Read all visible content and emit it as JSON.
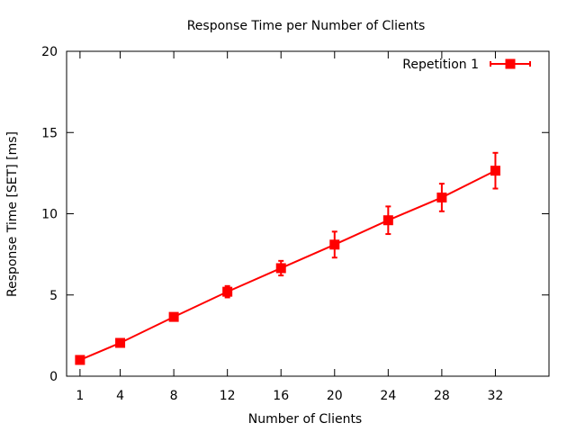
{
  "chart_data": {
    "type": "line",
    "title": "Response Time per Number of Clients",
    "xlabel": "Number of Clients",
    "ylabel": "Response Time [SET] [ms]",
    "xlim": [
      0,
      36
    ],
    "ylim": [
      0,
      20
    ],
    "xticks": [
      1,
      4,
      8,
      12,
      16,
      20,
      24,
      28,
      32
    ],
    "yticks": [
      0,
      5,
      10,
      15,
      20
    ],
    "grid": false,
    "legend_position": "top-right",
    "series": [
      {
        "name": "Repetition 1",
        "color": "#ff0000",
        "marker": "square",
        "x": [
          1,
          4,
          8,
          12,
          16,
          20,
          24,
          28,
          32
        ],
        "y": [
          1.0,
          2.05,
          3.65,
          5.2,
          6.65,
          8.1,
          9.6,
          11.0,
          12.65
        ],
        "error": [
          0.1,
          0.15,
          0.2,
          0.35,
          0.45,
          0.8,
          0.85,
          0.85,
          1.1
        ]
      }
    ]
  }
}
